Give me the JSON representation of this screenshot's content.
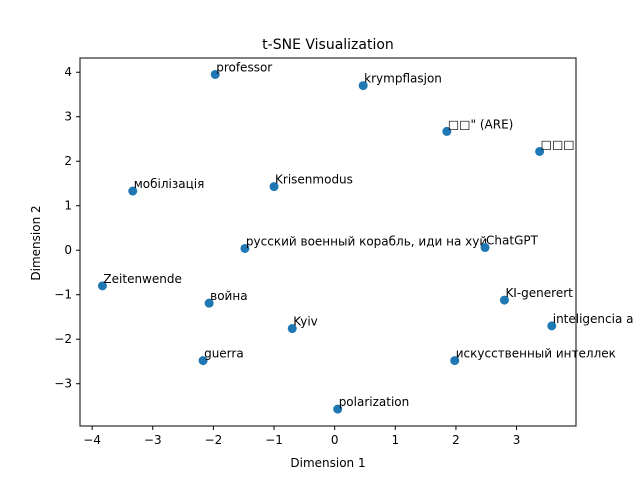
{
  "chart_data": {
    "type": "scatter",
    "title": "t-SNE Visualization",
    "xlabel": "Dimension 1",
    "ylabel": "Dimension 2",
    "xlim": [
      -4.2,
      3.98
    ],
    "ylim": [
      -3.95,
      4.32
    ],
    "xticks": [
      -4,
      -3,
      -2,
      -1,
      0,
      1,
      2,
      3
    ],
    "yticks": [
      -3,
      -2,
      -1,
      0,
      1,
      2,
      3,
      4
    ],
    "grid": false,
    "marker_color": "#1f77b4",
    "points": [
      {
        "label": "professor",
        "x": -1.97,
        "y": 3.95
      },
      {
        "label": "krympflasjon",
        "x": 0.47,
        "y": 3.7
      },
      {
        "label": "□□\" (ARE)",
        "x": 1.85,
        "y": 2.67
      },
      {
        "label": "□□□",
        "x": 3.38,
        "y": 2.22
      },
      {
        "label": "мобілізація",
        "x": -3.33,
        "y": 1.33
      },
      {
        "label": "Krisenmodus",
        "x": -1.0,
        "y": 1.43
      },
      {
        "label": "русский военный корабль, иди на хуй",
        "x": -1.48,
        "y": 0.04
      },
      {
        "label": "ChatGPT",
        "x": 2.48,
        "y": 0.06
      },
      {
        "label": "Zeitenwende",
        "x": -3.83,
        "y": -0.8
      },
      {
        "label": "война",
        "x": -2.07,
        "y": -1.19
      },
      {
        "label": "KI-generert",
        "x": 2.8,
        "y": -1.12
      },
      {
        "label": "Kyiv",
        "x": -0.7,
        "y": -1.76
      },
      {
        "label": "inteligencia a",
        "x": 3.58,
        "y": -1.7
      },
      {
        "label": "guerra",
        "x": -2.17,
        "y": -2.48
      },
      {
        "label": "искусственный интеллек",
        "x": 1.98,
        "y": -2.48
      },
      {
        "label": "polarization",
        "x": 0.05,
        "y": -3.57
      }
    ]
  }
}
